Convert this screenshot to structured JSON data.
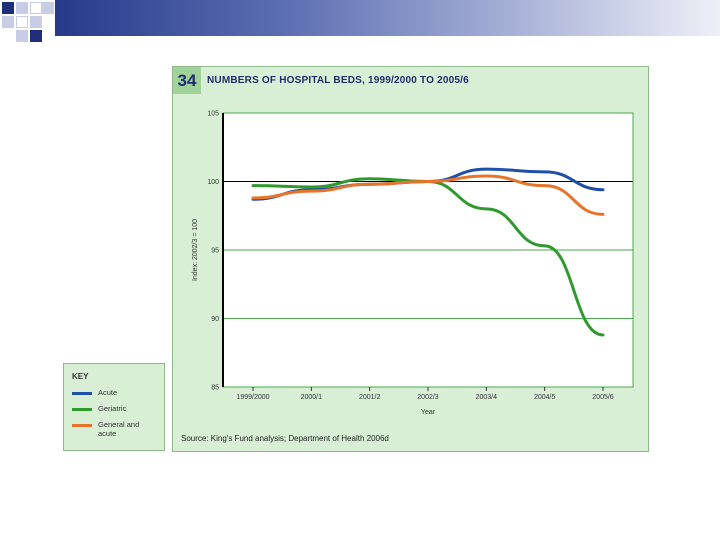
{
  "figure": {
    "number": "34",
    "title": "NUMBERS OF HOSPITAL BEDS, 1999/2000 TO 2005/6",
    "source": "Source: King's Fund analysis; Department of Health 2006d"
  },
  "key": {
    "title": "KEY",
    "items": [
      {
        "label": "Acute",
        "color": "#1f4fa6"
      },
      {
        "label": "Geriatric",
        "color": "#2e9a2e"
      },
      {
        "label": "General and acute",
        "color": "#e8742a"
      }
    ]
  },
  "colors": {
    "topbar": "#263a8a",
    "panel_bg": "#d8efd6",
    "plot_bg": "#ffffff",
    "grid": "#4aa84a"
  },
  "chart_data": {
    "type": "line",
    "title": "NUMBERS OF HOSPITAL BEDS, 1999/2000 TO 2005/6",
    "xlabel": "Year",
    "ylabel": "Index: 2002/3 = 100",
    "categories": [
      "1999/2000",
      "2000/1",
      "2001/2",
      "2002/3",
      "2003/4",
      "2004/5",
      "2005/6"
    ],
    "ylim": [
      85,
      105
    ],
    "yticks": [
      85,
      90,
      95,
      100,
      105
    ],
    "series": [
      {
        "name": "Acute",
        "color": "#1f4fa6",
        "values": [
          98.7,
          99.4,
          99.8,
          100.0,
          100.9,
          100.7,
          99.4
        ]
      },
      {
        "name": "Geriatric",
        "color": "#2e9a2e",
        "values": [
          99.7,
          99.6,
          100.2,
          100.0,
          98.0,
          95.3,
          88.8
        ]
      },
      {
        "name": "General and acute",
        "color": "#e8742a",
        "values": [
          98.8,
          99.3,
          99.8,
          100.0,
          100.4,
          99.7,
          97.6
        ]
      }
    ],
    "grid": true,
    "reference_line": 100,
    "legend_position": "bottom-left"
  }
}
